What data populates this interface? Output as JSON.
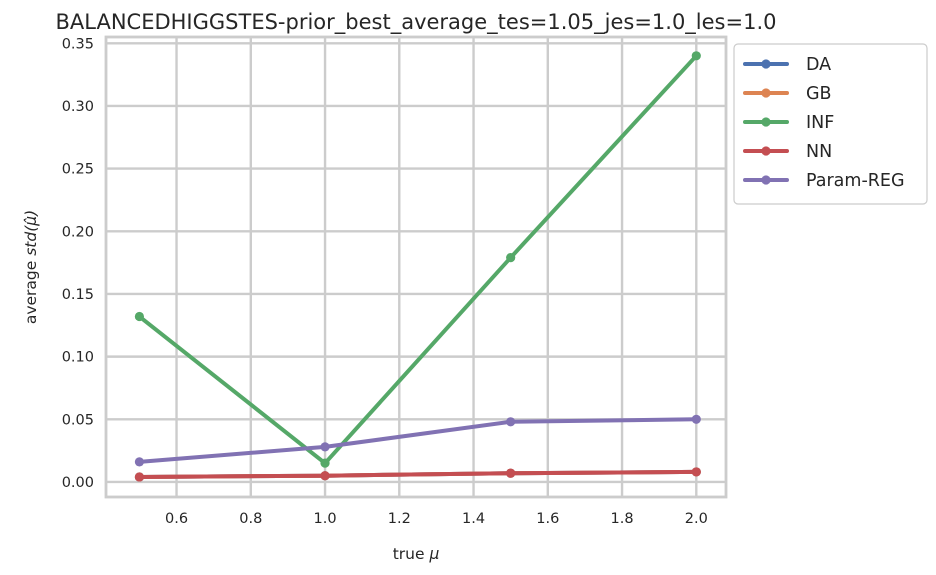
{
  "chart_data": {
    "type": "line",
    "title": "BALANCEDHIGGSTES-prior_best_average_tes=1.05_jes=1.0_les=1.0",
    "xlabel_prefix": "true ",
    "xlabel_symbol": "μ",
    "ylabel_prefix": "average ",
    "ylabel_symbol": "std(μ̂)",
    "x": [
      0.5,
      1.0,
      1.5,
      2.0
    ],
    "xlim": [
      0.41,
      2.08
    ],
    "ylim": [
      -0.012,
      0.355
    ],
    "xticks": [
      0.6,
      0.8,
      1.0,
      1.2,
      1.4,
      1.6,
      1.8,
      2.0
    ],
    "xtick_labels": [
      "0.6",
      "0.8",
      "1.0",
      "1.2",
      "1.4",
      "1.6",
      "1.8",
      "2.0"
    ],
    "yticks": [
      0.0,
      0.05,
      0.1,
      0.15,
      0.2,
      0.25,
      0.3,
      0.35
    ],
    "ytick_labels": [
      "0.00",
      "0.05",
      "0.10",
      "0.15",
      "0.20",
      "0.25",
      "0.30",
      "0.35"
    ],
    "grid": true,
    "legend_position": "outside-right-top",
    "series": [
      {
        "name": "DA",
        "color": "#4c72b0",
        "values": [
          0.004,
          0.005,
          0.007,
          0.008
        ]
      },
      {
        "name": "GB",
        "color": "#dd8452",
        "values": [
          0.004,
          0.005,
          0.007,
          0.008
        ]
      },
      {
        "name": "INF",
        "color": "#55a868",
        "values": [
          0.132,
          0.015,
          0.179,
          0.34
        ]
      },
      {
        "name": "NN",
        "color": "#c44e52",
        "values": [
          0.004,
          0.005,
          0.007,
          0.008
        ]
      },
      {
        "name": "Param-REG",
        "color": "#8172b3",
        "values": [
          0.016,
          0.028,
          0.048,
          0.05
        ]
      }
    ]
  }
}
